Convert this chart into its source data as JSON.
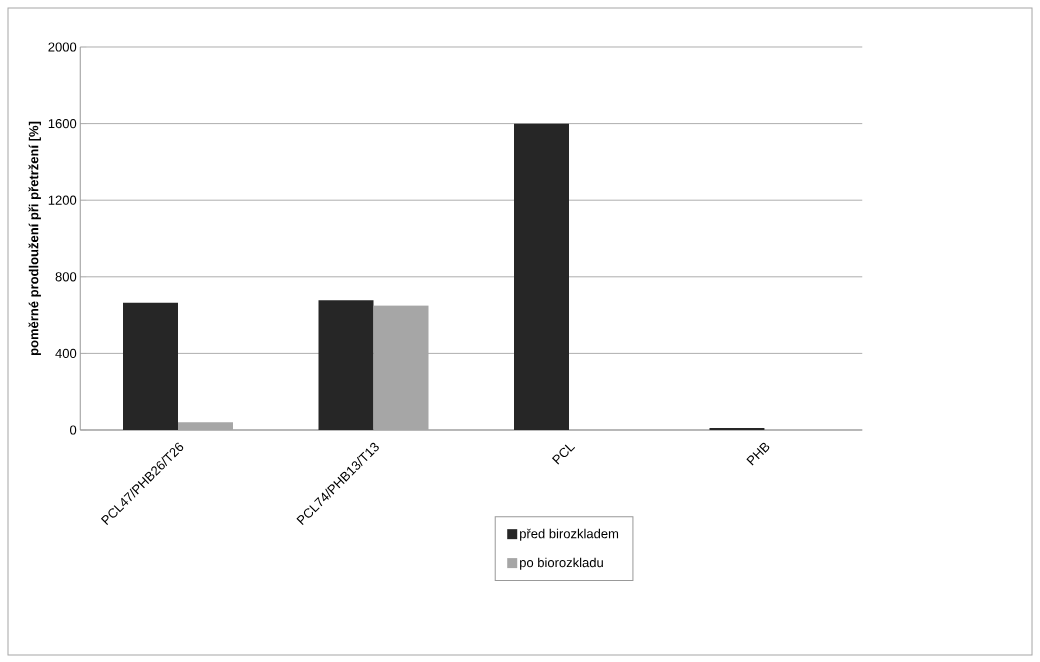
{
  "chart_data": {
    "type": "bar",
    "ylabel": "poměrné prodloužení při přetržení [%]",
    "categories": [
      "PCL47/PHB26/T26",
      "PCL74/PHB13/T13",
      "PCL",
      "PHB"
    ],
    "series": [
      {
        "name": "před birozkladem",
        "color": "#262626",
        "values": [
          665,
          678,
          1600,
          10
        ]
      },
      {
        "name": "po biorozkladu",
        "color": "#a6a6a6",
        "values": [
          40,
          650,
          0,
          0
        ]
      }
    ],
    "ylim": [
      0,
      2000
    ],
    "yticks": [
      0,
      400,
      800,
      1200,
      1600,
      2000
    ],
    "grid": "y",
    "legend": "bottom"
  }
}
